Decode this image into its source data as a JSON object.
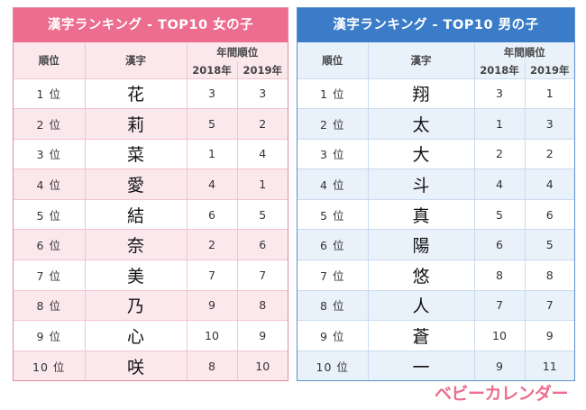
{
  "girls": {
    "title": "漢字ランキング - TOP10 女の子",
    "header": {
      "rank": "順位",
      "kanji": "漢字",
      "annual": "年間順位",
      "y2018": "2018年",
      "y2019": "2019年"
    },
    "rows": [
      {
        "rank": "1 位",
        "kanji": "花",
        "y2018": "3",
        "y2019": "3"
      },
      {
        "rank": "2 位",
        "kanji": "莉",
        "y2018": "5",
        "y2019": "2"
      },
      {
        "rank": "3 位",
        "kanji": "菜",
        "y2018": "1",
        "y2019": "4"
      },
      {
        "rank": "4 位",
        "kanji": "愛",
        "y2018": "4",
        "y2019": "1"
      },
      {
        "rank": "5 位",
        "kanji": "結",
        "y2018": "6",
        "y2019": "5"
      },
      {
        "rank": "6 位",
        "kanji": "奈",
        "y2018": "2",
        "y2019": "6"
      },
      {
        "rank": "7 位",
        "kanji": "美",
        "y2018": "7",
        "y2019": "7"
      },
      {
        "rank": "8 位",
        "kanji": "乃",
        "y2018": "9",
        "y2019": "8"
      },
      {
        "rank": "9 位",
        "kanji": "心",
        "y2018": "10",
        "y2019": "9"
      },
      {
        "rank": "10 位",
        "kanji": "咲",
        "y2018": "8",
        "y2019": "10"
      }
    ]
  },
  "boys": {
    "title": "漢字ランキング - TOP10 男の子",
    "header": {
      "rank": "順位",
      "kanji": "漢字",
      "annual": "年間順位",
      "y2018": "2018年",
      "y2019": "2019年"
    },
    "rows": [
      {
        "rank": "1 位",
        "kanji": "翔",
        "y2018": "3",
        "y2019": "1"
      },
      {
        "rank": "2 位",
        "kanji": "太",
        "y2018": "1",
        "y2019": "3"
      },
      {
        "rank": "3 位",
        "kanji": "大",
        "y2018": "2",
        "y2019": "2"
      },
      {
        "rank": "4 位",
        "kanji": "斗",
        "y2018": "4",
        "y2019": "4"
      },
      {
        "rank": "5 位",
        "kanji": "真",
        "y2018": "5",
        "y2019": "6"
      },
      {
        "rank": "6 位",
        "kanji": "陽",
        "y2018": "6",
        "y2019": "5"
      },
      {
        "rank": "7 位",
        "kanji": "悠",
        "y2018": "8",
        "y2019": "8"
      },
      {
        "rank": "8 位",
        "kanji": "人",
        "y2018": "7",
        "y2019": "7"
      },
      {
        "rank": "9 位",
        "kanji": "蒼",
        "y2018": "10",
        "y2019": "9"
      },
      {
        "rank": "10 位",
        "kanji": "一",
        "y2018": "9",
        "y2019": "11"
      }
    ]
  },
  "logo": {
    "text": "ベビーカレンダー",
    "color": "#ec6d8d"
  },
  "colors": {
    "girls_accent": "#ec6d8d",
    "boys_accent": "#3b7cc9"
  }
}
